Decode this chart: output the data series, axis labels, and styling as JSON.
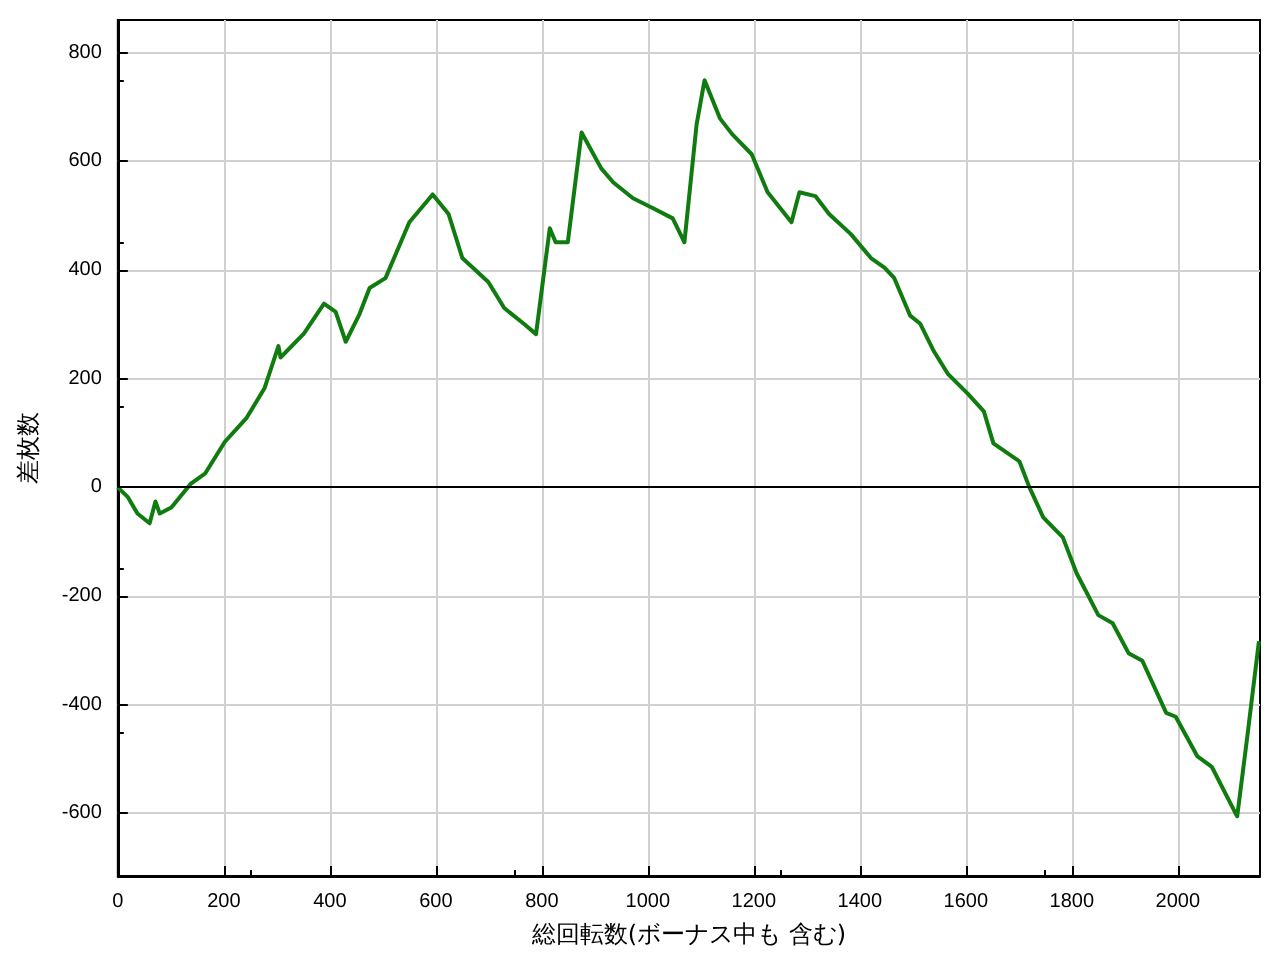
{
  "chart_data": {
    "type": "line",
    "xlabel": "総回転数(ボーナス中も 含む)",
    "ylabel": "差枚数",
    "xlim": [
      0,
      2155
    ],
    "ylim": [
      -715,
      860
    ],
    "xticks": [
      0,
      200,
      400,
      600,
      800,
      1000,
      1200,
      1400,
      1600,
      1800,
      2000
    ],
    "yticks": [
      -600,
      -400,
      -200,
      0,
      200,
      400,
      600,
      800
    ],
    "grid": true,
    "marker": "none",
    "line_style": "solid",
    "ref_lines": [
      {
        "axis": "y",
        "value": 0,
        "color": "#000000"
      }
    ],
    "series": [
      {
        "color": "#107c10",
        "x": [
          0,
          19,
          37,
          60,
          71,
          79,
          101,
          138,
          165,
          202,
          243,
          277,
          303,
          307,
          351,
          389,
          411,
          430,
          456,
          475,
          505,
          550,
          594,
          624,
          650,
          699,
          729,
          766,
          789,
          815,
          826,
          849,
          875,
          912,
          935,
          972,
          1009,
          1047,
          1069,
          1092,
          1107,
          1136,
          1159,
          1196,
          1226,
          1271,
          1286,
          1316,
          1342,
          1383,
          1421,
          1447,
          1465,
          1495,
          1514,
          1540,
          1566,
          1604,
          1634,
          1652,
          1701,
          1720,
          1746,
          1783,
          1809,
          1850,
          1877,
          1907,
          1933,
          1978,
          1996,
          2037,
          2064,
          2108,
          2112,
          2131,
          2153
        ],
        "values": [
          0,
          -18,
          -48,
          -66,
          -26,
          -48,
          -37,
          7,
          26,
          84,
          128,
          183,
          260,
          239,
          283,
          338,
          323,
          268,
          319,
          367,
          385,
          488,
          539,
          503,
          422,
          378,
          330,
          301,
          282,
          477,
          451,
          451,
          653,
          587,
          561,
          532,
          514,
          495,
          451,
          668,
          749,
          679,
          650,
          613,
          543,
          488,
          543,
          536,
          503,
          466,
          422,
          404,
          385,
          316,
          301,
          250,
          209,
          172,
          140,
          81,
          48,
          0,
          -55,
          -92,
          -158,
          -235,
          -250,
          -305,
          -319,
          -415,
          -422,
          -495,
          -514,
          -598,
          -605,
          -459,
          -283
        ]
      }
    ]
  }
}
